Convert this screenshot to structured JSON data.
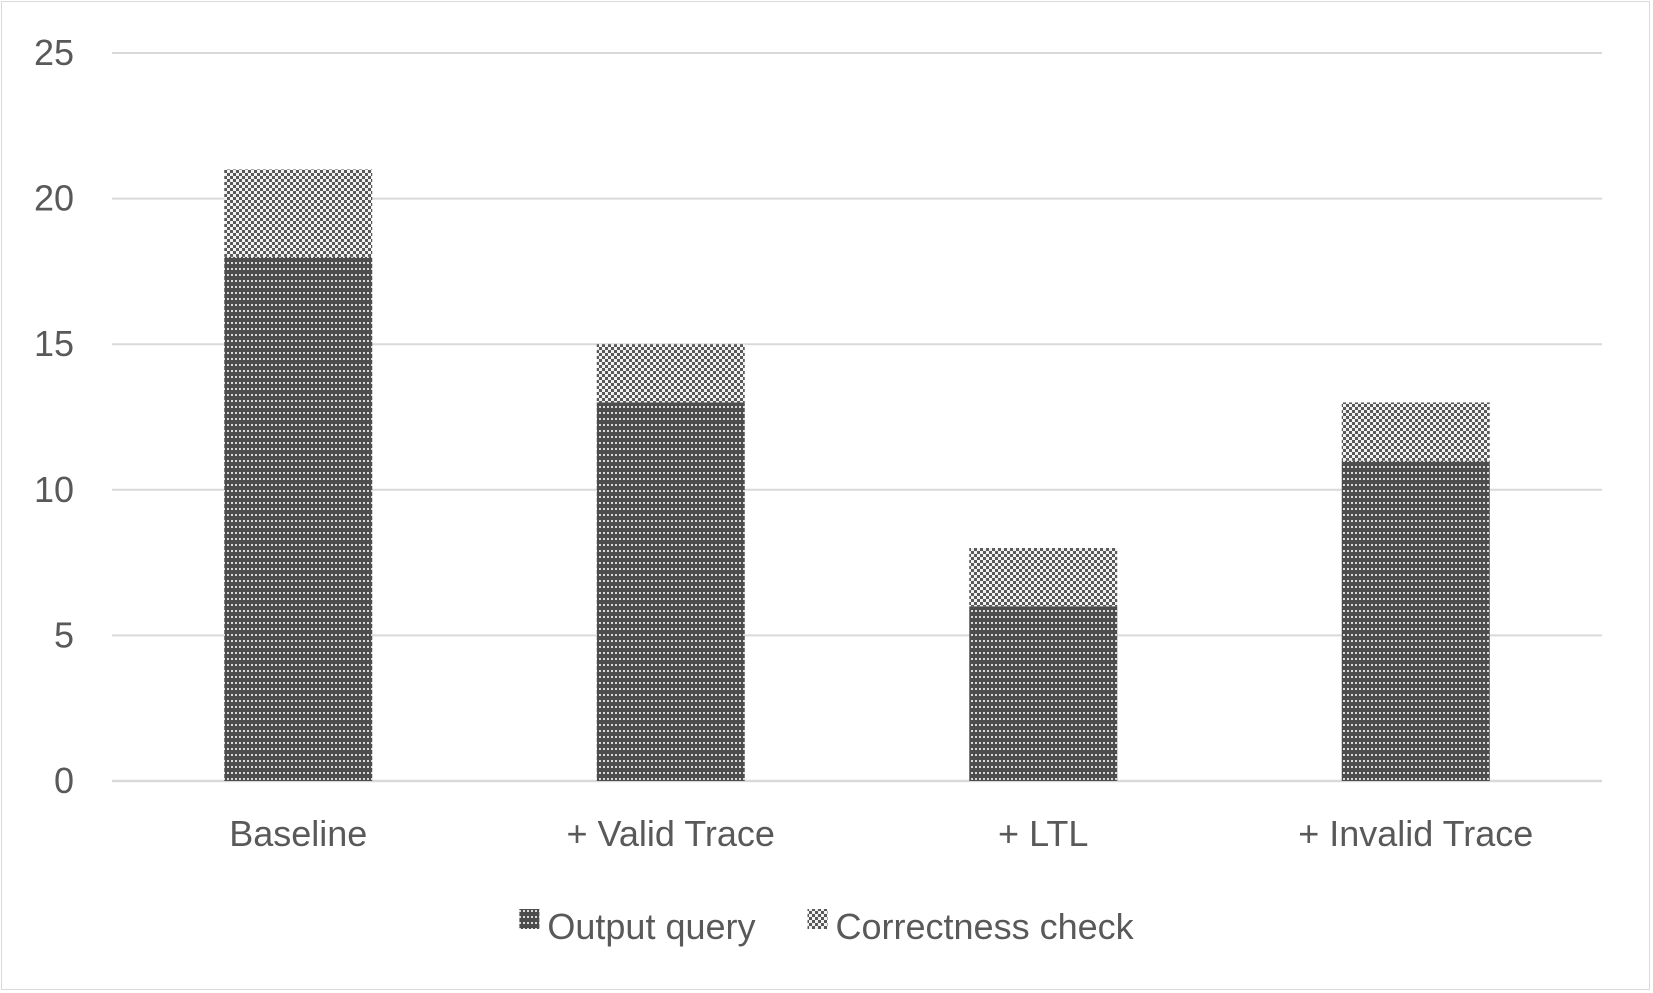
{
  "chart_data": {
    "type": "bar",
    "stacked": true,
    "categories": [
      "Baseline",
      "+ Valid Trace",
      "+ LTL",
      "+ Invalid Trace"
    ],
    "series": [
      {
        "name": "Output query",
        "values": [
          18,
          13,
          6,
          11
        ],
        "color": "#595959",
        "pattern": "dense-dots"
      },
      {
        "name": "Correctness check",
        "values": [
          3,
          2,
          2,
          2
        ],
        "color": "#7f7f7f",
        "pattern": "checker"
      }
    ],
    "ylim": [
      0,
      25
    ],
    "yticks": [
      0,
      5,
      10,
      15,
      20,
      25
    ],
    "grid": true,
    "legend": "bottom",
    "title": "",
    "xlabel": "",
    "ylabel": ""
  }
}
